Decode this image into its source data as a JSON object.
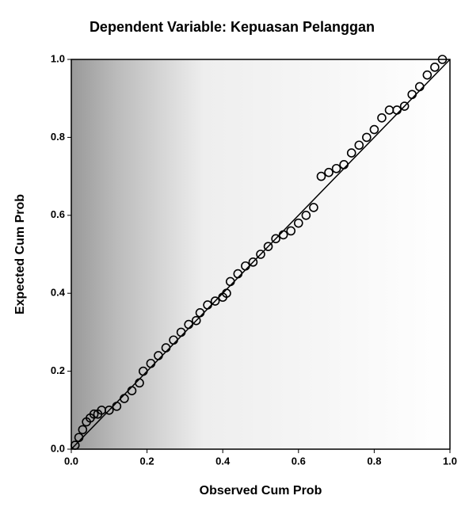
{
  "chart_data": {
    "type": "scatter",
    "title": "Dependent Variable: Kepuasan Pelanggan",
    "x_label": "Observed Cum Prob",
    "y_label": "Expected Cum Prob",
    "xlim": [
      0,
      1
    ],
    "ylim": [
      0,
      1
    ],
    "xticks": [
      {
        "value": 0,
        "label": "0.0"
      },
      {
        "value": 0.2,
        "label": "0.2"
      },
      {
        "value": 0.4,
        "label": "0.4"
      },
      {
        "value": 0.6,
        "label": "0.6"
      },
      {
        "value": 0.8,
        "label": "0.8"
      },
      {
        "value": 1,
        "label": "1.0"
      }
    ],
    "yticks": [
      {
        "value": 0,
        "label": "0.0"
      },
      {
        "value": 0.2,
        "label": "0.2"
      },
      {
        "value": 0.4,
        "label": "0.4"
      },
      {
        "value": 0.6,
        "label": "0.6"
      },
      {
        "value": 0.8,
        "label": "0.8"
      },
      {
        "value": 1,
        "label": "1.0"
      }
    ],
    "color": "#000000",
    "x": [
      0.01,
      0.02,
      0.03,
      0.04,
      0.05,
      0.06,
      0.07,
      0.08,
      0.1,
      0.12,
      0.14,
      0.16,
      0.18,
      0.19,
      0.21,
      0.23,
      0.25,
      0.27,
      0.29,
      0.31,
      0.33,
      0.34,
      0.36,
      0.38,
      0.4,
      0.41,
      0.42,
      0.44,
      0.46,
      0.48,
      0.5,
      0.52,
      0.54,
      0.56,
      0.58,
      0.6,
      0.62,
      0.64,
      0.66,
      0.68,
      0.7,
      0.72,
      0.74,
      0.76,
      0.78,
      0.8,
      0.82,
      0.84,
      0.86,
      0.88,
      0.9,
      0.92,
      0.94,
      0.96,
      0.98
    ],
    "values": [
      0.01,
      0.03,
      0.05,
      0.07,
      0.08,
      0.09,
      0.09,
      0.1,
      0.1,
      0.11,
      0.13,
      0.15,
      0.17,
      0.2,
      0.22,
      0.24,
      0.26,
      0.28,
      0.3,
      0.32,
      0.33,
      0.35,
      0.37,
      0.38,
      0.39,
      0.4,
      0.43,
      0.45,
      0.47,
      0.48,
      0.5,
      0.52,
      0.54,
      0.55,
      0.56,
      0.58,
      0.6,
      0.62,
      0.7,
      0.71,
      0.72,
      0.73,
      0.76,
      0.78,
      0.8,
      0.82,
      0.85,
      0.87,
      0.87,
      0.88,
      0.91,
      0.93,
      0.96,
      0.98,
      1.0
    ]
  }
}
